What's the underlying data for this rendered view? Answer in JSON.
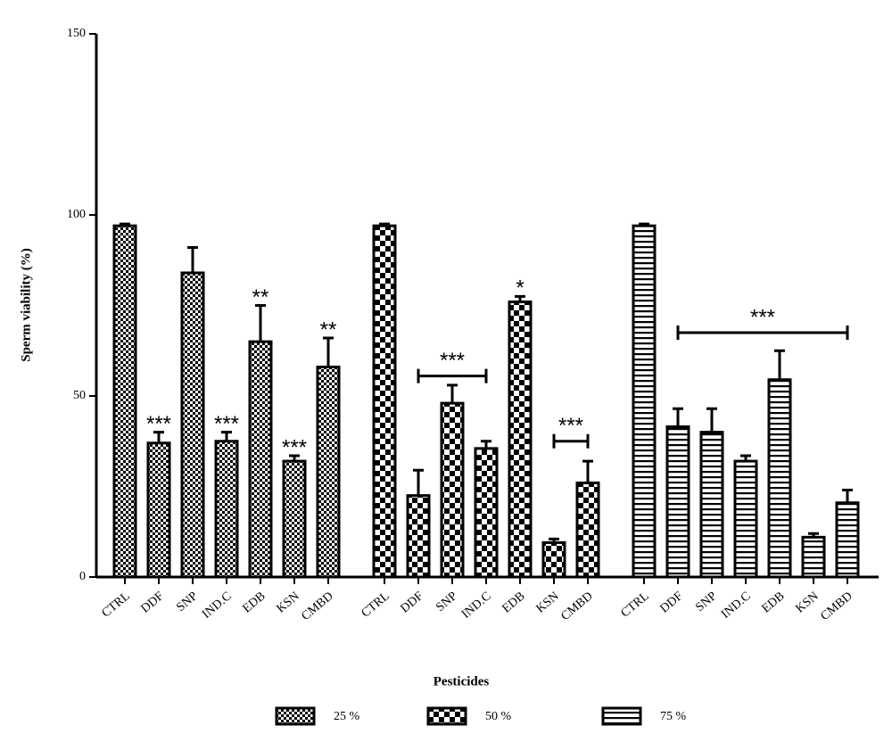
{
  "chart_data": {
    "type": "bar",
    "y_label": "Sperm viability (%)",
    "x_label": "Pesticides",
    "categories": [
      "CTRL",
      "DDF",
      "SNP",
      "IND.C",
      "EDB",
      "KSN",
      "CMBD"
    ],
    "ylim": [
      0,
      150
    ],
    "yticks": [
      0,
      50,
      100,
      150
    ],
    "series": [
      {
        "name": "25 %",
        "color": "#000000",
        "pattern": "fine-check",
        "values": [
          97,
          37,
          84,
          37.5,
          65,
          32,
          58
        ],
        "errors": [
          0.5,
          3,
          7,
          2.5,
          10,
          1.5,
          8
        ],
        "significance": [
          null,
          "***",
          null,
          "***",
          "**",
          "***",
          "**"
        ],
        "brackets": []
      },
      {
        "name": "50 %",
        "color": "#000000",
        "pattern": "check",
        "values": [
          97,
          22.5,
          48,
          35.5,
          76,
          9.5,
          26
        ],
        "errors": [
          0.5,
          7,
          5,
          2,
          1.5,
          1,
          6
        ],
        "significance": [
          null,
          null,
          null,
          null,
          "*",
          null,
          null
        ],
        "brackets": [
          {
            "start": "DDF",
            "end": "IND.C",
            "label": "***",
            "y": 55.5
          },
          {
            "start": "KSN",
            "end": "CMBD",
            "label": "***",
            "y": 37.5
          }
        ]
      },
      {
        "name": "75 %",
        "color": "#000000",
        "pattern": "stripes",
        "values": [
          97,
          41.5,
          40,
          32,
          54.5,
          11,
          20.5
        ],
        "errors": [
          0.5,
          5,
          6.5,
          1.5,
          8,
          1,
          3.5
        ],
        "significance": [
          null,
          null,
          null,
          null,
          null,
          null,
          null
        ],
        "brackets": [
          {
            "start": "DDF",
            "end": "CMBD",
            "label": "***",
            "y": 67.5
          }
        ]
      }
    ]
  }
}
